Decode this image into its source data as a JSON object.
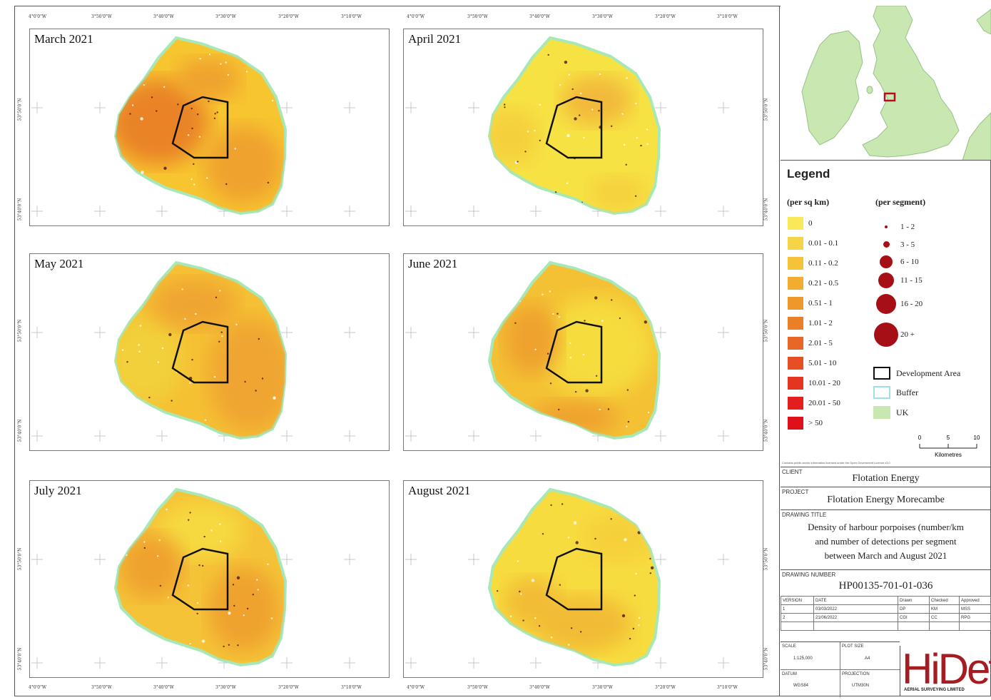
{
  "coords": {
    "top_lon": [
      "4°0'0\"W",
      "3°50'0\"W",
      "3°40'0\"W",
      "3°30'0\"W",
      "3°20'0\"W",
      "3°10'0\"W"
    ],
    "bottom_lon": [
      "4°0'0\"W",
      "3°50'0\"W",
      "3°40'0\"W",
      "3°30'0\"W",
      "3°20'0\"W",
      "3°10'0\"W"
    ],
    "lat": [
      "53°50'0\"N",
      "53°40'0\"N"
    ]
  },
  "panels": [
    {
      "title": "March 2021",
      "palette": [
        "#f7c530",
        "#f0a22d",
        "#e98328"
      ]
    },
    {
      "title": "April 2021",
      "palette": [
        "#f7e243",
        "#f5d03e",
        "#f2b93a"
      ]
    },
    {
      "title": "May 2021",
      "palette": [
        "#f5c033",
        "#f0a530",
        "#f2d03a"
      ]
    },
    {
      "title": "June 2021",
      "palette": [
        "#f4c134",
        "#efa22e",
        "#f6dc3e"
      ]
    },
    {
      "title": "July 2021",
      "palette": [
        "#f5c337",
        "#efa22e",
        "#f6d940"
      ]
    },
    {
      "title": "August 2021",
      "palette": [
        "#f7dc3f",
        "#f2bb36",
        "#f6d03a"
      ]
    }
  ],
  "legend": {
    "title": "Legend",
    "density_header": "(per sq km)",
    "segment_header": "(per segment)",
    "density_classes": [
      {
        "label": "0",
        "color": "#f8e85a"
      },
      {
        "label": "0.01 - 0.1",
        "color": "#f6d447"
      },
      {
        "label": "0.11 - 0.2",
        "color": "#f5c33a"
      },
      {
        "label": "0.21 - 0.5",
        "color": "#f2ad31"
      },
      {
        "label": "0.51 - 1",
        "color": "#ee972b"
      },
      {
        "label": "1.01 - 2",
        "color": "#ea7f28"
      },
      {
        "label": "2.01 - 5",
        "color": "#e86726"
      },
      {
        "label": "5.01 - 10",
        "color": "#e64f24"
      },
      {
        "label": "10.01 - 20",
        "color": "#e43521"
      },
      {
        "label": "20.01 - 50",
        "color": "#e21f1e"
      },
      {
        "label": "> 50",
        "color": "#e0101a"
      }
    ],
    "segment_classes": [
      "1 - 2",
      "3 - 5",
      "6 - 10",
      "11 - 15",
      "16 - 20",
      "20 +"
    ],
    "other": [
      {
        "label": "Development Area"
      },
      {
        "label": "Buffer"
      },
      {
        "label": "UK"
      }
    ],
    "scale_ticks": [
      "0",
      "5",
      "10"
    ],
    "scale_unit": "Kilometres"
  },
  "credit": "Contains public sector information licensed under the Open Government Licence v3.0",
  "title_block": {
    "client_label": "CLIENT",
    "client": "Flotation Energy",
    "project_label": "PROJECT",
    "project": "Flotation Energy Morecambe",
    "drawing_title_label": "DRAWING TITLE",
    "drawing_title": [
      "Density of harbour porpoises (number/km",
      "and number of detections per segment",
      "between March and August 2021"
    ],
    "drawing_number_label": "DRAWING NUMBER",
    "drawing_number": "HP00135-701-01-036",
    "version_headers": [
      "VERSION",
      "DATE",
      "Drawn",
      "Checked",
      "Approved"
    ],
    "versions": [
      [
        "1",
        "03/03/2022",
        "DP",
        "KM",
        "MSS"
      ],
      [
        "2",
        "21/06/2022",
        "CGI",
        "CC",
        "RPG"
      ]
    ],
    "scale_label": "SCALE",
    "scale": "1:125,000",
    "plot_size_label": "PLOT SIZE",
    "plot_size": "A4",
    "datum_label": "DATUM",
    "datum": "WGS84",
    "projection_label": "PROJECTION",
    "projection": "UTM30N",
    "logo": "HiDef",
    "logo_sub": "AERIAL SURVEYING LIMITED"
  }
}
